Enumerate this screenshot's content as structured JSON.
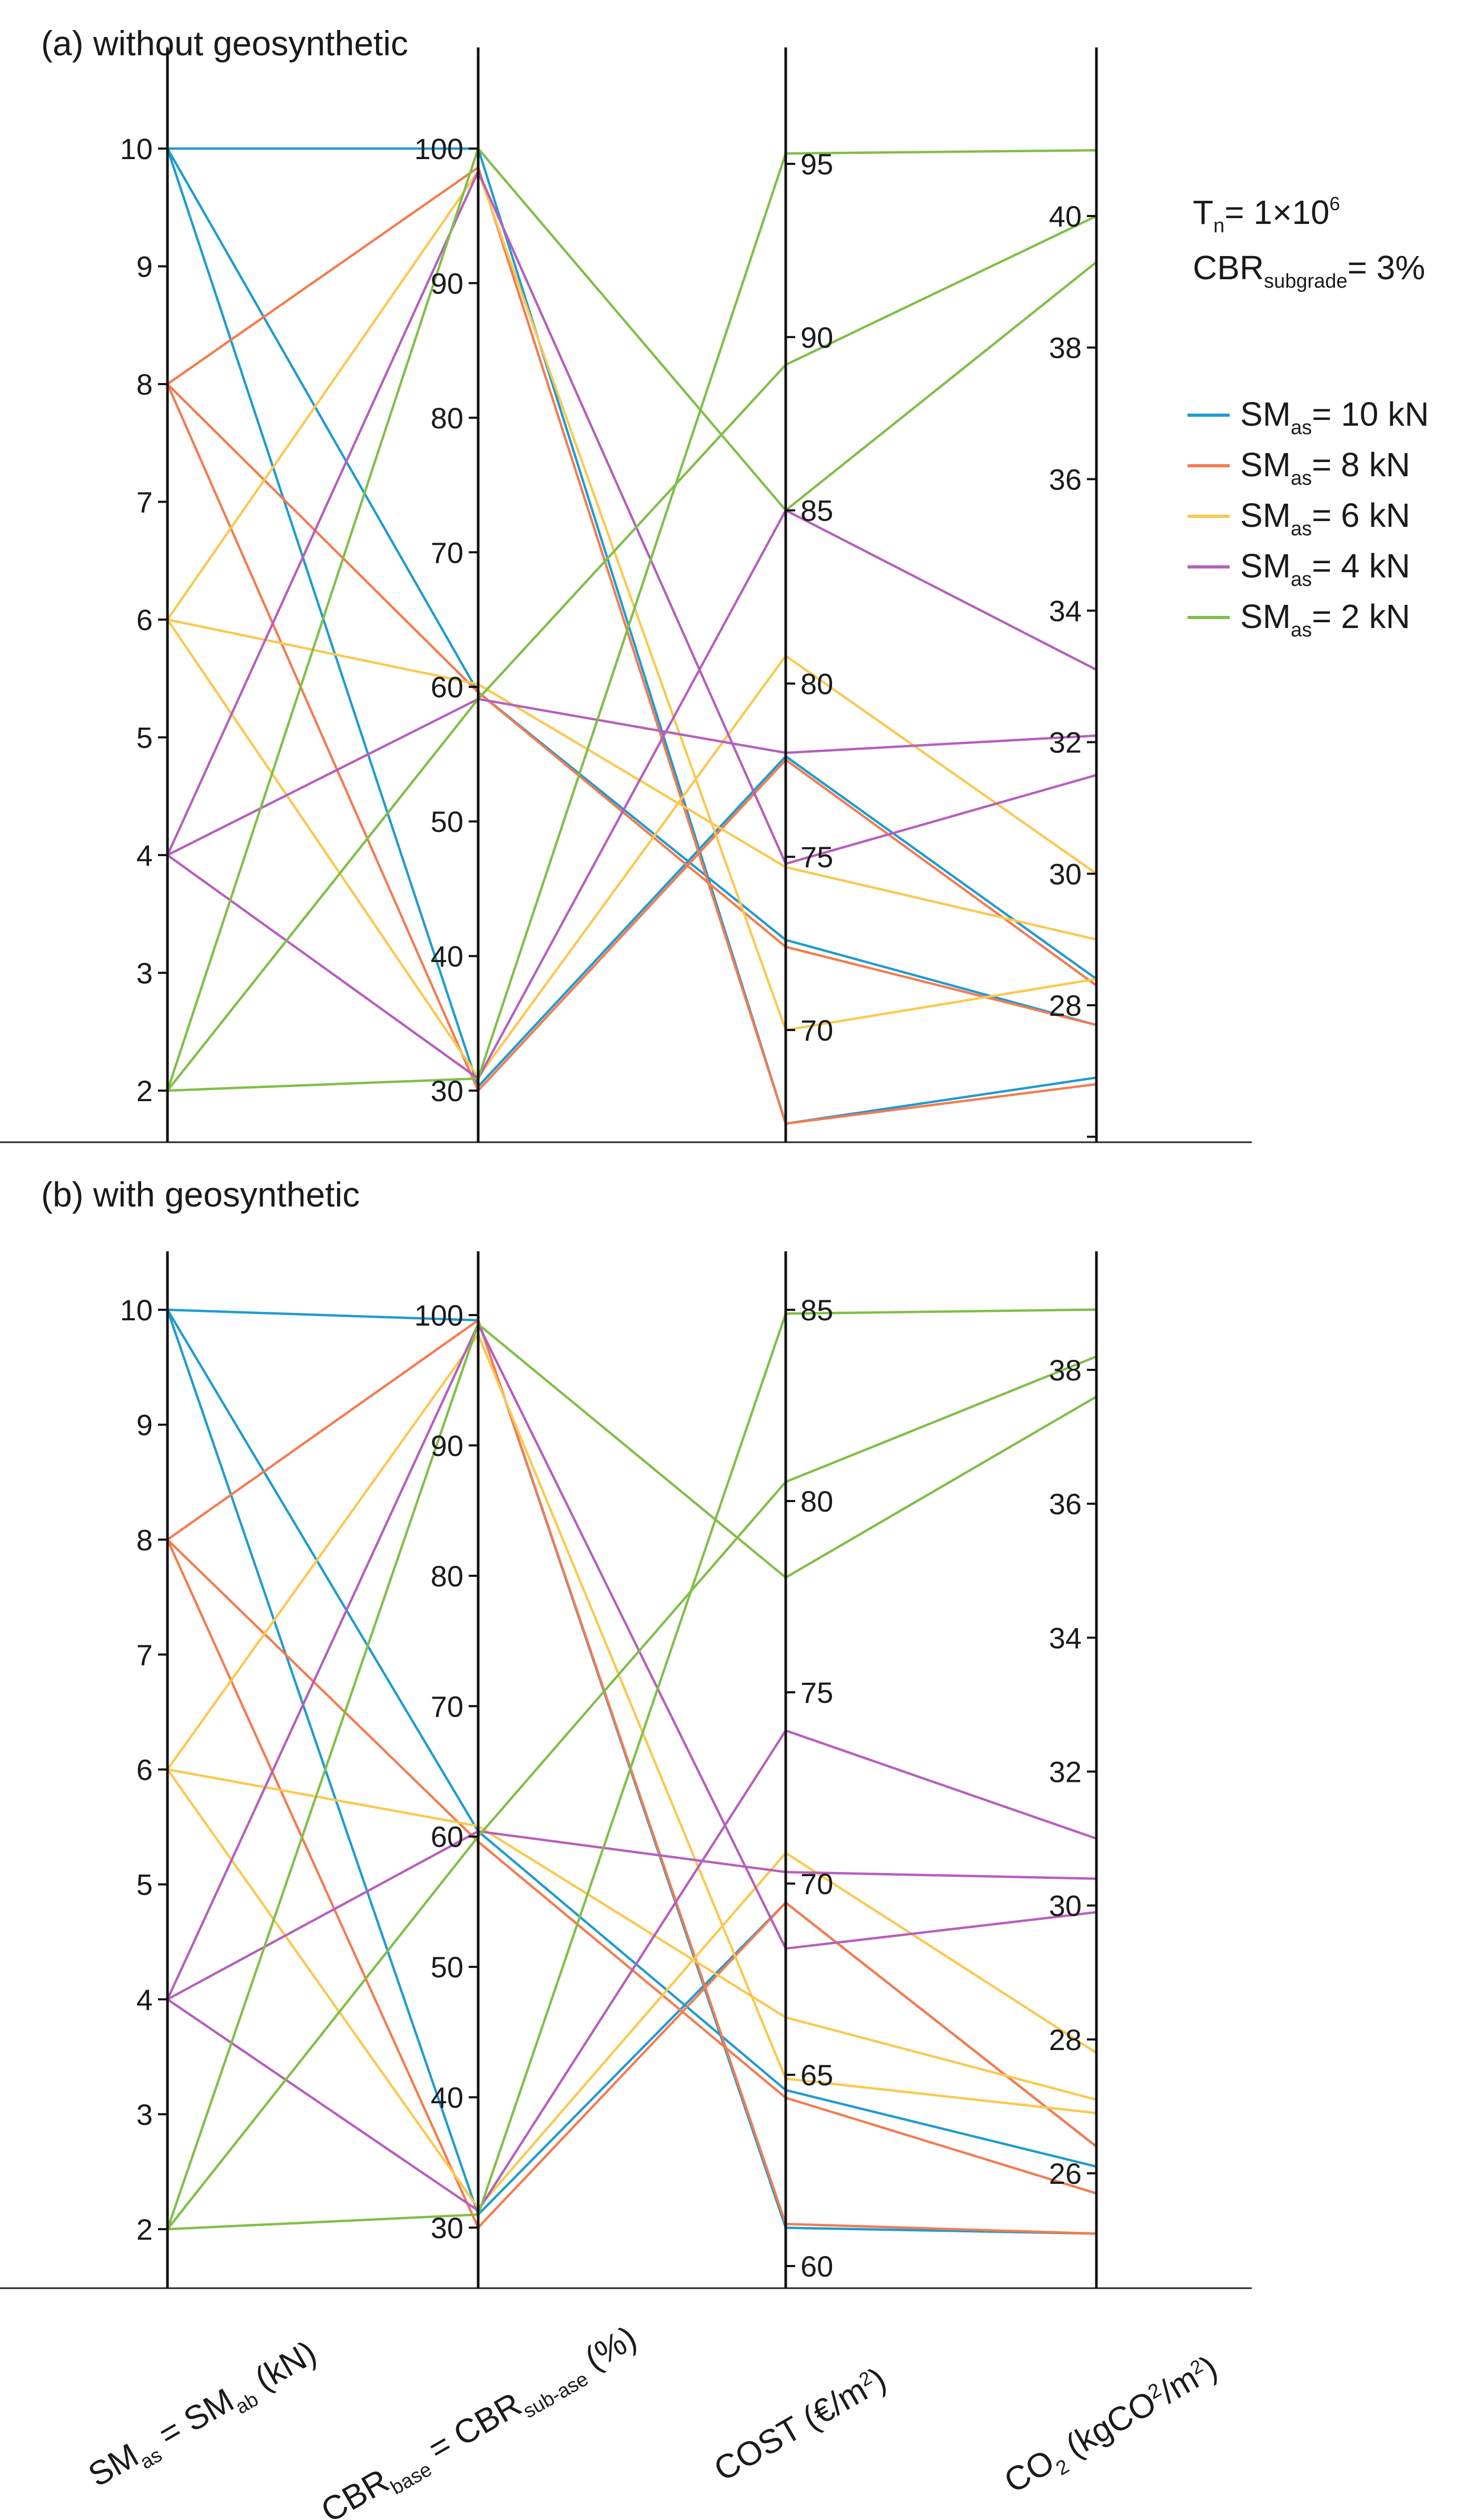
{
  "chart_data": {
    "type": "parallel-coordinates",
    "axes": [
      {
        "id": "sm",
        "label_parts": [
          "SM",
          "as",
          " = SM",
          "ab",
          " (kN)"
        ],
        "label": "SM_as = SM_ab (kN)"
      },
      {
        "id": "cbr",
        "label_parts": [
          "CBR",
          "base",
          " = CBR",
          "sub-ase",
          " (%)"
        ],
        "label": "CBR_base = CBR_sub-ase (%)"
      },
      {
        "id": "cost",
        "label_parts": [
          "COST (€/m",
          "2",
          ")"
        ],
        "label": "COST (€/m2)"
      },
      {
        "id": "co2",
        "label_parts": [
          "CO",
          "2",
          " (kgCO",
          "2",
          "/m",
          "2",
          ")"
        ],
        "label": "CO2 (kgCO2/m2)"
      }
    ],
    "annotation": {
      "tn_prefix": "T",
      "tn_sub": "n",
      "tn_mid": "= 1×10",
      "tn_sup": "6",
      "cbr_prefix": "CBR",
      "cbr_sub": "subgrade",
      "cbr_suffix": "= 3%"
    },
    "series_legend": [
      {
        "name": "SM_as= 10 kN",
        "prefix": "SM",
        "sub": "as",
        "suffix": "= 10 kN",
        "color": "#1f9bd1"
      },
      {
        "name": "SM_as= 8 kN",
        "prefix": "SM",
        "sub": "as",
        "suffix": "= 8 kN",
        "color": "#f47b4f"
      },
      {
        "name": "SM_as= 6 kN",
        "prefix": "SM",
        "sub": "as",
        "suffix": "= 6 kN",
        "color": "#fbc84f"
      },
      {
        "name": "SM_as= 4 kN",
        "prefix": "SM",
        "sub": "as",
        "suffix": "= 4 kN",
        "color": "#b65fbd"
      },
      {
        "name": "SM_as= 2 kN",
        "prefix": "SM",
        "sub": "as",
        "suffix": "= 2 kN",
        "color": "#7fbf47"
      }
    ],
    "panels": [
      {
        "id": "a",
        "title": "(a)  without geosynthetic",
        "ticks": {
          "sm": [
            "10",
            "9",
            "8",
            "7",
            "6",
            "5",
            "4",
            "3",
            "2"
          ],
          "cbr": [
            "100",
            "90",
            "80",
            "70",
            "60",
            "50",
            "40",
            "30"
          ],
          "cost": [
            "95",
            "90",
            "85",
            "80",
            "75",
            "70"
          ],
          "co2": [
            "40",
            "38",
            "36",
            "34",
            "32",
            "30",
            "28"
          ]
        },
        "ranges": {
          "sm": [
            1.6,
            10.45
          ],
          "cbr": [
            26.2,
            104.0
          ],
          "cost": [
            66.0,
            97.0
          ],
          "co2": [
            25.9,
            42.0
          ]
        },
        "lines": [
          {
            "series": 0,
            "values": [
              10,
              100,
              67.3,
              26.9
            ]
          },
          {
            "series": 0,
            "values": [
              10,
              59.6,
              72.6,
              27.7
            ]
          },
          {
            "series": 0,
            "values": [
              10,
              30.3,
              77.9,
              28.4
            ]
          },
          {
            "series": 1,
            "values": [
              8,
              98.6,
              67.3,
              26.8
            ]
          },
          {
            "series": 1,
            "values": [
              8,
              59.6,
              72.4,
              27.7
            ]
          },
          {
            "series": 1,
            "values": [
              8,
              30.0,
              77.8,
              28.3
            ]
          },
          {
            "series": 2,
            "values": [
              6,
              98.3,
              70.0,
              28.4
            ]
          },
          {
            "series": 2,
            "values": [
              6,
              60.2,
              74.7,
              29.0
            ]
          },
          {
            "series": 2,
            "values": [
              6,
              31.0,
              80.8,
              30.0
            ]
          },
          {
            "series": 3,
            "values": [
              4,
              98.3,
              74.8,
              31.5
            ]
          },
          {
            "series": 3,
            "values": [
              4,
              59.1,
              78.0,
              32.1
            ]
          },
          {
            "series": 3,
            "values": [
              4,
              30.9,
              85.0,
              33.1
            ]
          },
          {
            "series": 4,
            "values": [
              2,
              100,
              85.0,
              39.3
            ]
          },
          {
            "series": 4,
            "values": [
              2,
              59.1,
              89.2,
              40.0
            ]
          },
          {
            "series": 4,
            "values": [
              2,
              30.9,
              95.3,
              41.0
            ]
          }
        ]
      },
      {
        "id": "b",
        "title": "(b) with geosynthetic",
        "ticks": {
          "sm": [
            "10",
            "9",
            "8",
            "7",
            "6",
            "5",
            "4",
            "3",
            "2"
          ],
          "cbr": [
            "100",
            "90",
            "80",
            "70",
            "60",
            "50",
            "40",
            "30"
          ],
          "cost": [
            "85",
            "80",
            "75",
            "70",
            "65",
            "60"
          ],
          "co2": [
            "38",
            "36",
            "34",
            "32",
            "30",
            "28",
            "26"
          ]
        },
        "ranges": {
          "sm": [
            1.55,
            10.5
          ],
          "cbr": [
            25.7,
            105.0
          ],
          "cost": [
            59.0,
            86.5
          ],
          "co2": [
            24.3,
            39.7
          ]
        },
        "lines": [
          {
            "series": 0,
            "values": [
              10,
              99.6,
              61.0,
              25.1
            ]
          },
          {
            "series": 0,
            "values": [
              10,
              60.4,
              64.6,
              26.1
            ]
          },
          {
            "series": 0,
            "values": [
              10,
              31.0,
              69.5,
              26.4
            ]
          },
          {
            "series": 1,
            "values": [
              8,
              99.6,
              61.1,
              25.1
            ]
          },
          {
            "series": 1,
            "values": [
              8,
              59.6,
              64.4,
              25.7
            ]
          },
          {
            "series": 1,
            "values": [
              8,
              30.0,
              69.5,
              26.4
            ]
          },
          {
            "series": 2,
            "values": [
              6,
              98.5,
              64.9,
              26.9
            ]
          },
          {
            "series": 2,
            "values": [
              6,
              60.8,
              66.5,
              27.1
            ]
          },
          {
            "series": 2,
            "values": [
              6,
              31.5,
              70.8,
              27.8
            ]
          },
          {
            "series": 3,
            "values": [
              4,
              99.3,
              68.3,
              29.9
            ]
          },
          {
            "series": 3,
            "values": [
              4,
              60.4,
              70.3,
              30.4
            ]
          },
          {
            "series": 3,
            "values": [
              4,
              31.3,
              74.0,
              31.0
            ]
          },
          {
            "series": 4,
            "values": [
              2,
              99.3,
              78.0,
              37.6
            ]
          },
          {
            "series": 4,
            "values": [
              2,
              60.0,
              80.5,
              38.2
            ]
          },
          {
            "series": 4,
            "values": [
              2,
              31.0,
              84.9,
              38.9
            ]
          }
        ]
      }
    ]
  }
}
